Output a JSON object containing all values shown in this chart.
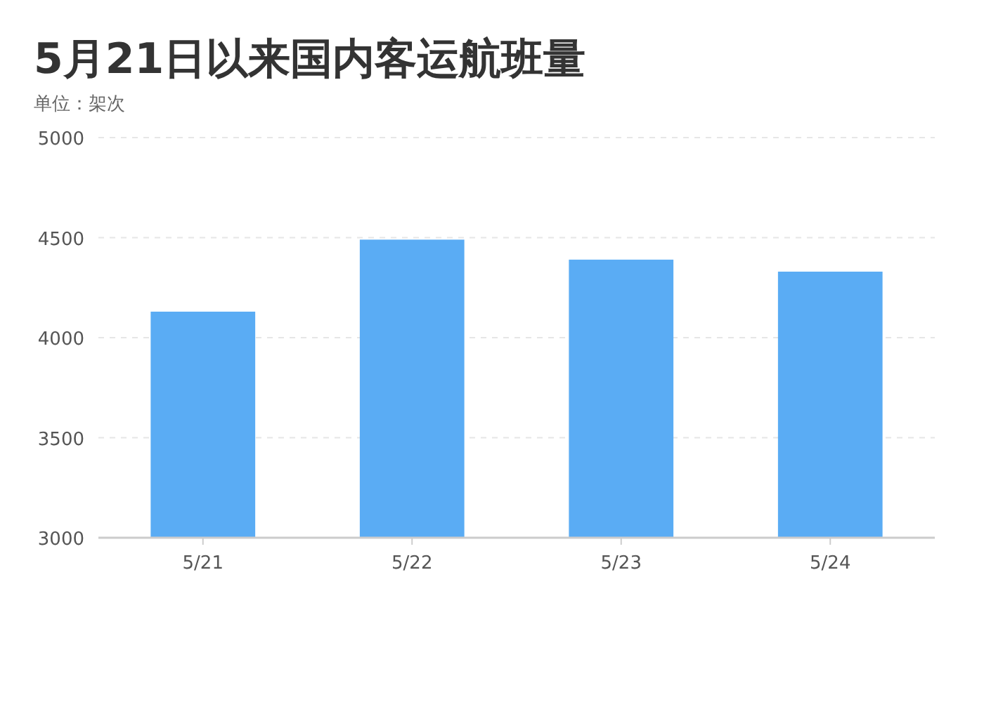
{
  "chart_data": {
    "type": "bar",
    "title": "5月21日以来国内客运航班量",
    "subtitle": "单位：架次",
    "categories": [
      "5/21",
      "5/22",
      "5/23",
      "5/24"
    ],
    "values": [
      4130,
      4490,
      4390,
      4330
    ],
    "color": "#5aacf4",
    "ylim": [
      3000,
      5000
    ],
    "yticks": [
      3000,
      3500,
      4000,
      4500,
      5000
    ],
    "grid": "y"
  }
}
